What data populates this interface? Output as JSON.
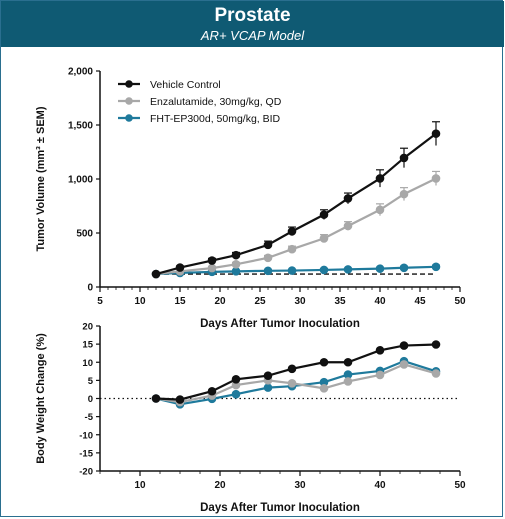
{
  "header": {
    "title": "Prostate",
    "subtitle": "AR+ VCAP Model"
  },
  "colors": {
    "header_bg": "#0f5a73",
    "vehicle": "#111111",
    "enzalutamide": "#a8a8a8",
    "fht": "#1f7a9c"
  },
  "chart_data": [
    {
      "type": "line",
      "xlabel": "Days After Tumor Inoculation",
      "ylabel": "Tumor Volume (mm³ ± SEM)",
      "xlim": [
        5,
        50
      ],
      "ylim": [
        0,
        2000
      ],
      "xticks": [
        5,
        10,
        15,
        20,
        25,
        30,
        35,
        40,
        45,
        50
      ],
      "yticks": [
        0,
        500,
        1000,
        1500,
        2000
      ],
      "ytick_labels": [
        "0",
        "500",
        "1,000",
        "1,500",
        "2,000"
      ],
      "legend_position": "top-left",
      "series": [
        {
          "name": "Vehicle  Control",
          "color": "#111111",
          "x": [
            12,
            15,
            19,
            22,
            26,
            29,
            33,
            36,
            40,
            43,
            47
          ],
          "y": [
            120,
            180,
            245,
            295,
            390,
            515,
            670,
            820,
            1005,
            1195,
            1420
          ],
          "err": [
            10,
            15,
            20,
            25,
            35,
            40,
            45,
            50,
            80,
            90,
            110
          ]
        },
        {
          "name": "Enzalutamide, 30mg/kg, QD",
          "color": "#a8a8a8",
          "x": [
            12,
            15,
            19,
            22,
            26,
            29,
            33,
            36,
            40,
            43,
            47
          ],
          "y": [
            120,
            145,
            175,
            210,
            270,
            350,
            450,
            565,
            715,
            860,
            1005
          ],
          "err": [
            10,
            12,
            15,
            18,
            22,
            28,
            35,
            40,
            55,
            60,
            65
          ]
        },
        {
          "name": "FHT-EP300d, 50mg/kg, BID",
          "color": "#1f7a9c",
          "x": [
            12,
            15,
            19,
            22,
            26,
            29,
            33,
            36,
            40,
            43,
            47
          ],
          "y": [
            120,
            130,
            140,
            145,
            150,
            152,
            158,
            163,
            170,
            178,
            187
          ],
          "err": [
            8,
            8,
            10,
            10,
            10,
            10,
            12,
            12,
            12,
            14,
            15
          ]
        }
      ],
      "reference_line": {
        "y": 120,
        "style": "dashed"
      }
    },
    {
      "type": "line",
      "xlabel": "Days After Tumor Inoculation",
      "ylabel": "Body Weight Change (%)",
      "xlim": [
        5,
        50
      ],
      "ylim": [
        -20,
        20
      ],
      "xticks": [
        10,
        20,
        30,
        40,
        50
      ],
      "yticks": [
        -20,
        -15,
        -10,
        -5,
        0,
        5,
        10,
        15,
        20
      ],
      "series": [
        {
          "name": "Vehicle  Control",
          "color": "#111111",
          "x": [
            12,
            15,
            19,
            22,
            26,
            29,
            33,
            36,
            40,
            43,
            47
          ],
          "y": [
            0,
            -0.3,
            2.0,
            5.3,
            6.3,
            8.2,
            10.0,
            10.0,
            13.3,
            14.6,
            14.9
          ]
        },
        {
          "name": "Enzalutamide, 30mg/kg, QD",
          "color": "#a8a8a8",
          "x": [
            12,
            15,
            19,
            22,
            26,
            29,
            33,
            36,
            40,
            43,
            47
          ],
          "y": [
            0,
            -1.0,
            0.8,
            3.7,
            5.0,
            4.2,
            2.8,
            4.7,
            6.5,
            9.4,
            6.9
          ]
        },
        {
          "name": "FHT-EP300d, 50mg/kg, BID",
          "color": "#1f7a9c",
          "x": [
            12,
            15,
            19,
            22,
            26,
            29,
            33,
            36,
            40,
            43,
            47
          ],
          "y": [
            0,
            -1.6,
            -0.1,
            1.2,
            3.0,
            3.4,
            4.5,
            6.6,
            7.6,
            10.3,
            7.5
          ]
        }
      ],
      "reference_line": {
        "y": 0,
        "style": "dotted"
      }
    }
  ]
}
